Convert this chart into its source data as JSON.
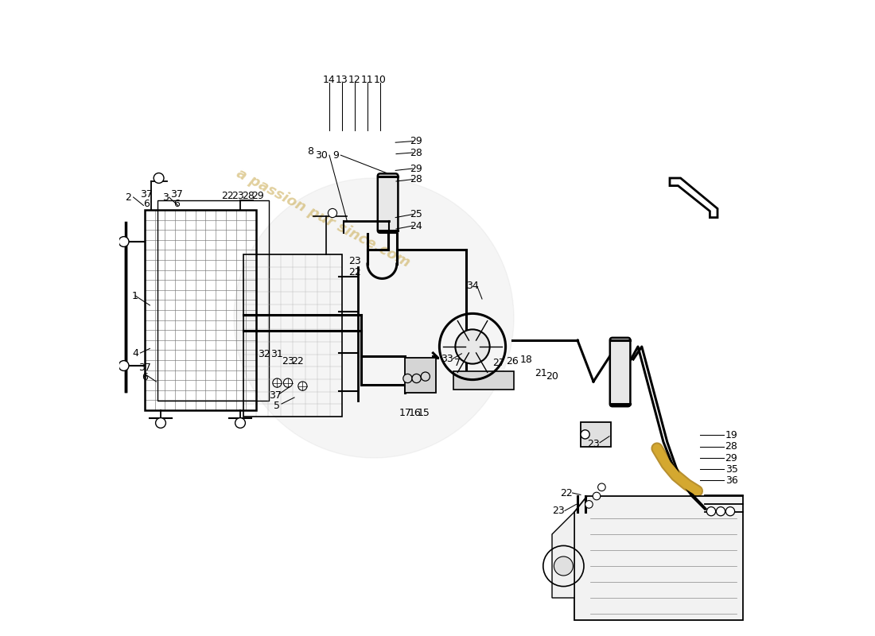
{
  "background_color": "#ffffff",
  "watermark_text": "a passion pur since.com",
  "watermark_color": "#c8a84b",
  "watermark_alpha": 0.45,
  "line_color": "#000000"
}
